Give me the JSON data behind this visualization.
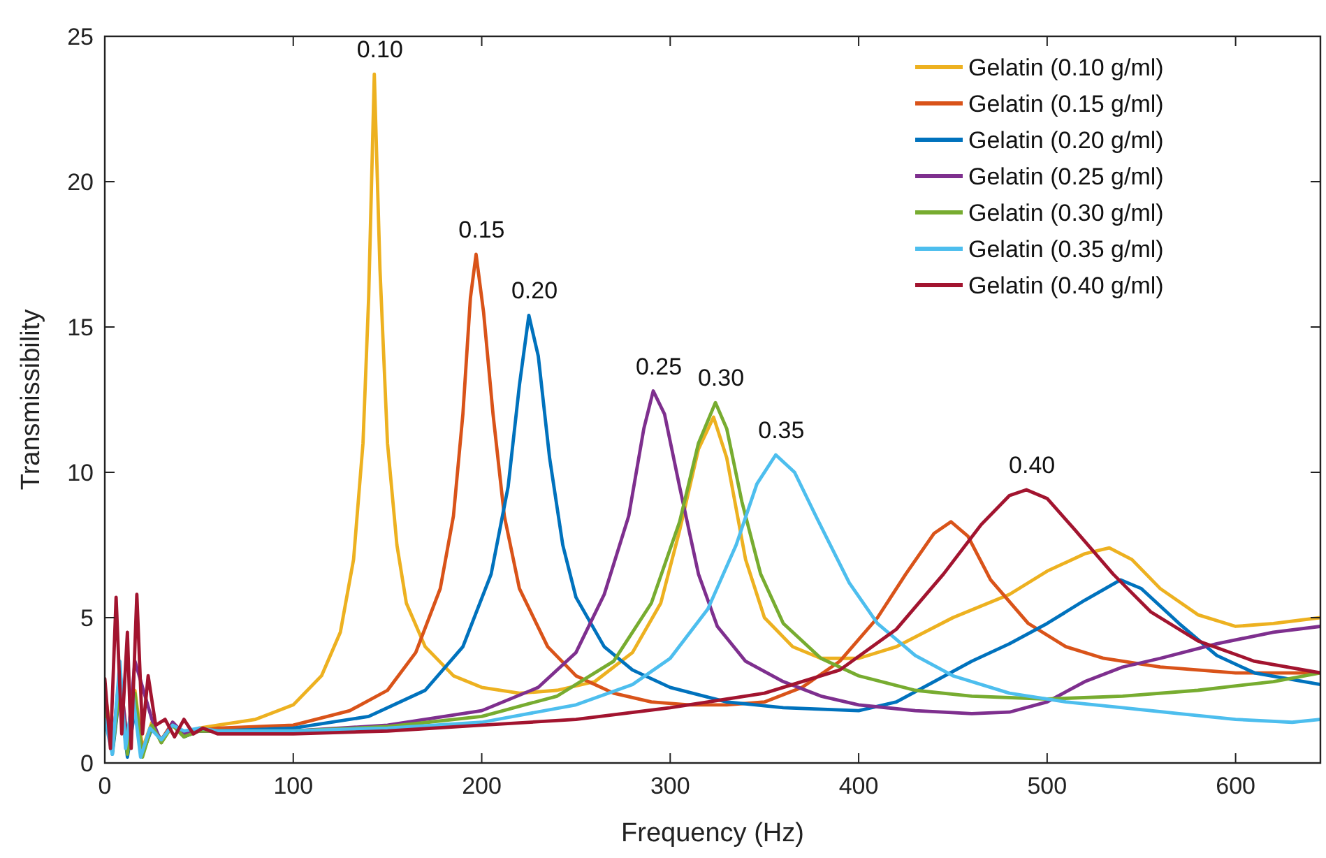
{
  "chart_data": {
    "type": "line",
    "xlabel": "Frequency (Hz)",
    "ylabel": "Transmissibility",
    "xlim": [
      0,
      645
    ],
    "ylim": [
      0,
      25
    ],
    "xticks": [
      0,
      100,
      200,
      300,
      400,
      500,
      600
    ],
    "yticks": [
      0,
      5,
      10,
      15,
      20,
      25
    ],
    "grid": false,
    "legend": "top right",
    "line_style": "solid",
    "marker": "none",
    "annotations": [
      {
        "text": "0.10",
        "x": 143,
        "y": 23.7
      },
      {
        "text": "0.15",
        "x": 197,
        "y": 17.5
      },
      {
        "text": "0.20",
        "x": 225,
        "y": 15.4
      },
      {
        "text": "0.25",
        "x": 291,
        "y": 12.8
      },
      {
        "text": "0.30",
        "x": 324,
        "y": 12.4
      },
      {
        "text": "0.35",
        "x": 356,
        "y": 10.6
      },
      {
        "text": "0.40",
        "x": 489,
        "y": 9.4
      }
    ],
    "series": [
      {
        "name": "Gelatin (0.10 g/ml)",
        "color": "#edb120",
        "x": [
          0,
          4,
          8,
          12,
          16,
          20,
          25,
          30,
          36,
          42,
          50,
          60,
          80,
          100,
          115,
          125,
          132,
          137,
          140,
          143,
          146,
          150,
          155,
          160,
          170,
          185,
          200,
          220,
          240,
          260,
          280,
          295,
          305,
          315,
          323,
          330,
          340,
          350,
          365,
          380,
          400,
          420,
          450,
          480,
          500,
          520,
          533,
          545,
          560,
          580,
          600,
          620,
          645
        ],
        "values": [
          2.5,
          0.6,
          3,
          0.8,
          2.5,
          0.5,
          1.4,
          0.7,
          1.3,
          0.9,
          1.2,
          1.3,
          1.5,
          2.0,
          3,
          4.5,
          7,
          11,
          16,
          23.7,
          17,
          11,
          7.5,
          5.5,
          4,
          3,
          2.6,
          2.4,
          2.5,
          2.8,
          3.8,
          5.5,
          8,
          10.8,
          11.9,
          10.5,
          7,
          5,
          4,
          3.6,
          3.6,
          4,
          5,
          5.8,
          6.6,
          7.2,
          7.4,
          7,
          6,
          5.1,
          4.7,
          4.8,
          5.0
        ]
      },
      {
        "name": "Gelatin (0.15 g/ml)",
        "color": "#d95319",
        "x": [
          0,
          4,
          8,
          12,
          16,
          20,
          25,
          30,
          36,
          42,
          50,
          60,
          100,
          130,
          150,
          165,
          178,
          185,
          190,
          194,
          197,
          201,
          206,
          212,
          220,
          235,
          250,
          270,
          290,
          310,
          330,
          350,
          370,
          390,
          410,
          425,
          440,
          449,
          458,
          470,
          490,
          510,
          530,
          560,
          600,
          645
        ],
        "values": [
          2,
          0.4,
          2.8,
          0.7,
          2.2,
          0.4,
          1.3,
          0.8,
          1.4,
          1.0,
          1.1,
          1.2,
          1.3,
          1.8,
          2.5,
          3.8,
          6,
          8.5,
          12,
          16,
          17.5,
          15.5,
          12,
          8.5,
          6,
          4,
          3,
          2.4,
          2.1,
          2,
          2,
          2.1,
          2.6,
          3.5,
          5,
          6.5,
          7.9,
          8.3,
          7.8,
          6.3,
          4.8,
          4,
          3.6,
          3.3,
          3.1,
          3.1
        ]
      },
      {
        "name": "Gelatin (0.20 g/ml)",
        "color": "#0072bd",
        "x": [
          4,
          8,
          12,
          16,
          20,
          25,
          30,
          36,
          42,
          50,
          60,
          100,
          140,
          170,
          190,
          205,
          214,
          220,
          225,
          230,
          236,
          243,
          250,
          265,
          280,
          300,
          330,
          360,
          400,
          420,
          440,
          460,
          480,
          500,
          520,
          539,
          550,
          570,
          590,
          610,
          645
        ],
        "values": [
          0.3,
          2.5,
          0.2,
          1.8,
          0.3,
          1.2,
          0.8,
          1.3,
          0.9,
          1.1,
          1.1,
          1.2,
          1.6,
          2.5,
          4,
          6.5,
          9.5,
          13,
          15.4,
          14,
          10.5,
          7.5,
          5.7,
          4,
          3.2,
          2.6,
          2.1,
          1.9,
          1.8,
          2.1,
          2.8,
          3.5,
          4.1,
          4.8,
          5.6,
          6.3,
          6,
          4.8,
          3.7,
          3.1,
          2.7
        ]
      },
      {
        "name": "Gelatin (0.25 g/ml)",
        "color": "#7e2f8e",
        "x": [
          0,
          4,
          8,
          12,
          16,
          25,
          30,
          36,
          42,
          50,
          60,
          100,
          150,
          200,
          230,
          250,
          265,
          278,
          286,
          291,
          297,
          305,
          315,
          325,
          340,
          360,
          380,
          400,
          430,
          460,
          480,
          500,
          520,
          540,
          560,
          590,
          620,
          645
        ],
        "values": [
          2.2,
          0.5,
          3.2,
          0.6,
          3.5,
          1.5,
          0.7,
          1.4,
          1.0,
          1.1,
          1.1,
          1.1,
          1.3,
          1.8,
          2.6,
          3.8,
          5.8,
          8.5,
          11.5,
          12.8,
          12,
          9.5,
          6.5,
          4.7,
          3.5,
          2.8,
          2.3,
          2,
          1.8,
          1.7,
          1.75,
          2.1,
          2.8,
          3.3,
          3.6,
          4.1,
          4.5,
          4.7
        ]
      },
      {
        "name": "Gelatin (0.30 g/ml)",
        "color": "#77ac30",
        "x": [
          0,
          4,
          8,
          12,
          16,
          20,
          25,
          30,
          36,
          42,
          50,
          60,
          100,
          150,
          200,
          240,
          270,
          290,
          305,
          315,
          324,
          330,
          338,
          348,
          360,
          380,
          400,
          430,
          460,
          500,
          540,
          580,
          620,
          645
        ],
        "values": [
          1.9,
          0.4,
          2.6,
          0.3,
          2.4,
          0.2,
          1.3,
          0.7,
          1.3,
          0.9,
          1.1,
          1.1,
          1.1,
          1.25,
          1.6,
          2.3,
          3.5,
          5.5,
          8.3,
          11,
          12.4,
          11.5,
          9,
          6.5,
          4.8,
          3.6,
          3,
          2.5,
          2.3,
          2.2,
          2.3,
          2.5,
          2.8,
          3.1
        ]
      },
      {
        "name": "Gelatin (0.35 g/ml)",
        "color": "#4dbeee",
        "x": [
          0,
          4,
          8,
          11,
          15,
          19,
          24,
          30,
          36,
          42,
          50,
          60,
          100,
          150,
          200,
          250,
          280,
          300,
          320,
          335,
          346,
          356,
          366,
          378,
          395,
          410,
          430,
          450,
          480,
          510,
          540,
          570,
          600,
          630,
          645
        ],
        "values": [
          1.5,
          0.3,
          3.5,
          0.5,
          2.3,
          0.2,
          1.2,
          0.8,
          1.3,
          1.1,
          1.2,
          1.1,
          1.1,
          1.2,
          1.4,
          2,
          2.7,
          3.6,
          5.3,
          7.5,
          9.6,
          10.6,
          10,
          8.4,
          6.2,
          4.8,
          3.7,
          3,
          2.4,
          2.1,
          1.9,
          1.7,
          1.5,
          1.4,
          1.5
        ]
      },
      {
        "name": "Gelatin (0.40 g/ml)",
        "color": "#a2142f",
        "x": [
          0,
          3,
          6,
          9,
          12,
          14,
          17,
          20,
          23,
          27,
          32,
          37,
          42,
          47,
          52,
          60,
          100,
          150,
          200,
          250,
          300,
          350,
          390,
          420,
          445,
          465,
          480,
          489,
          500,
          515,
          535,
          555,
          580,
          610,
          645
        ],
        "values": [
          2.9,
          0.5,
          5.7,
          1,
          4.5,
          0.5,
          5.8,
          1,
          3,
          1.3,
          1.5,
          0.9,
          1.5,
          1.0,
          1.2,
          1.0,
          1.0,
          1.1,
          1.3,
          1.5,
          1.9,
          2.4,
          3.2,
          4.6,
          6.5,
          8.2,
          9.2,
          9.4,
          9.1,
          8,
          6.5,
          5.2,
          4.2,
          3.5,
          3.1
        ]
      }
    ]
  }
}
